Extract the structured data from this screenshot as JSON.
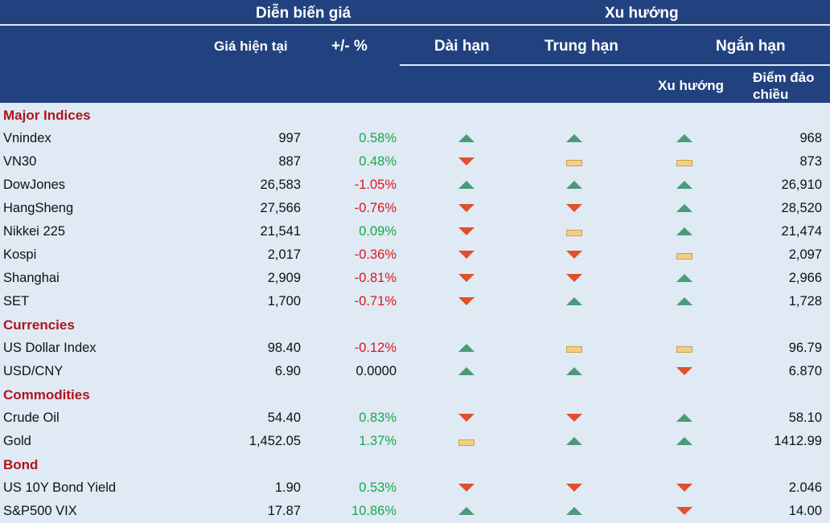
{
  "header": {
    "price_group": "Diễn biến giá",
    "trend_group": "Xu hướng",
    "current_price": "Giá hiện tại",
    "change_pct": "+/- %",
    "long_term": "Dài hạn",
    "mid_term": "Trung hạn",
    "short_term": "Ngắn hạn",
    "short_trend": "Xu hướng",
    "reversal_point": "Điểm đảo chiều"
  },
  "colors": {
    "header_bg": "#22427f",
    "body_bg": "#dfeaf4",
    "category_text": "#b0141e",
    "positive": "#1aa84b",
    "negative": "#e0141e",
    "trend_up": "#4c9a7a",
    "trend_down": "#e0502a",
    "trend_flat": "#f2cf84"
  },
  "rows": [
    {
      "type": "category",
      "label": "Major Indices"
    },
    {
      "type": "item",
      "label": "Vnindex",
      "price": "997",
      "pct": "0.58%",
      "dir": "up",
      "long": "up",
      "mid": "up",
      "short": "up",
      "reversal": "968"
    },
    {
      "type": "item",
      "label": "VN30",
      "price": "887",
      "pct": "0.48%",
      "dir": "up",
      "long": "down",
      "mid": "flat",
      "short": "flat",
      "reversal": "873"
    },
    {
      "type": "item",
      "label": "DowJones",
      "price": "26,583",
      "pct": "-1.05%",
      "dir": "down",
      "long": "up",
      "mid": "up",
      "short": "up",
      "reversal": "26,910"
    },
    {
      "type": "item",
      "label": "HangSheng",
      "price": "27,566",
      "pct": "-0.76%",
      "dir": "down",
      "long": "down",
      "mid": "down",
      "short": "up",
      "reversal": "28,520"
    },
    {
      "type": "item",
      "label": "Nikkei 225",
      "price": "21,541",
      "pct": "0.09%",
      "dir": "up",
      "long": "down",
      "mid": "flat",
      "short": "up",
      "reversal": "21,474"
    },
    {
      "type": "item",
      "label": "Kospi",
      "price": "2,017",
      "pct": "-0.36%",
      "dir": "down",
      "long": "down",
      "mid": "down",
      "short": "flat",
      "reversal": "2,097"
    },
    {
      "type": "item",
      "label": "Shanghai",
      "price": "2,909",
      "pct": "-0.81%",
      "dir": "down",
      "long": "down",
      "mid": "down",
      "short": "up",
      "reversal": "2,966"
    },
    {
      "type": "item",
      "label": "SET",
      "price": "1,700",
      "pct": "-0.71%",
      "dir": "down",
      "long": "down",
      "mid": "up",
      "short": "up",
      "reversal": "1,728"
    },
    {
      "type": "category",
      "label": "Currencies"
    },
    {
      "type": "item",
      "label": "US Dollar Index",
      "price": "98.40",
      "pct": "-0.12%",
      "dir": "down",
      "long": "up",
      "mid": "flat",
      "short": "flat",
      "reversal": "96.79"
    },
    {
      "type": "item",
      "label": "USD/CNY",
      "price": "6.90",
      "pct": "0.0000",
      "dir": "flat",
      "long": "up",
      "mid": "up",
      "short": "down",
      "reversal": "6.870"
    },
    {
      "type": "category",
      "label": "Commodities"
    },
    {
      "type": "item",
      "label": "Crude Oil",
      "price": "54.40",
      "pct": "0.83%",
      "dir": "up",
      "long": "down",
      "mid": "down",
      "short": "up",
      "reversal": "58.10"
    },
    {
      "type": "item",
      "label": "Gold",
      "price": "1,452.05",
      "pct": "1.37%",
      "dir": "up",
      "long": "flat",
      "mid": "up",
      "short": "up",
      "reversal": "1412.99"
    },
    {
      "type": "category",
      "label": "Bond"
    },
    {
      "type": "item",
      "label": "US 10Y Bond Yield",
      "price": "1.90",
      "pct": "0.53%",
      "dir": "up",
      "long": "down",
      "mid": "down",
      "short": "down",
      "reversal": "2.046"
    },
    {
      "type": "item",
      "label": "S&P500 VIX",
      "price": "17.87",
      "pct": "10.86%",
      "dir": "up",
      "long": "up",
      "mid": "up",
      "short": "down",
      "reversal": "14.00"
    }
  ]
}
